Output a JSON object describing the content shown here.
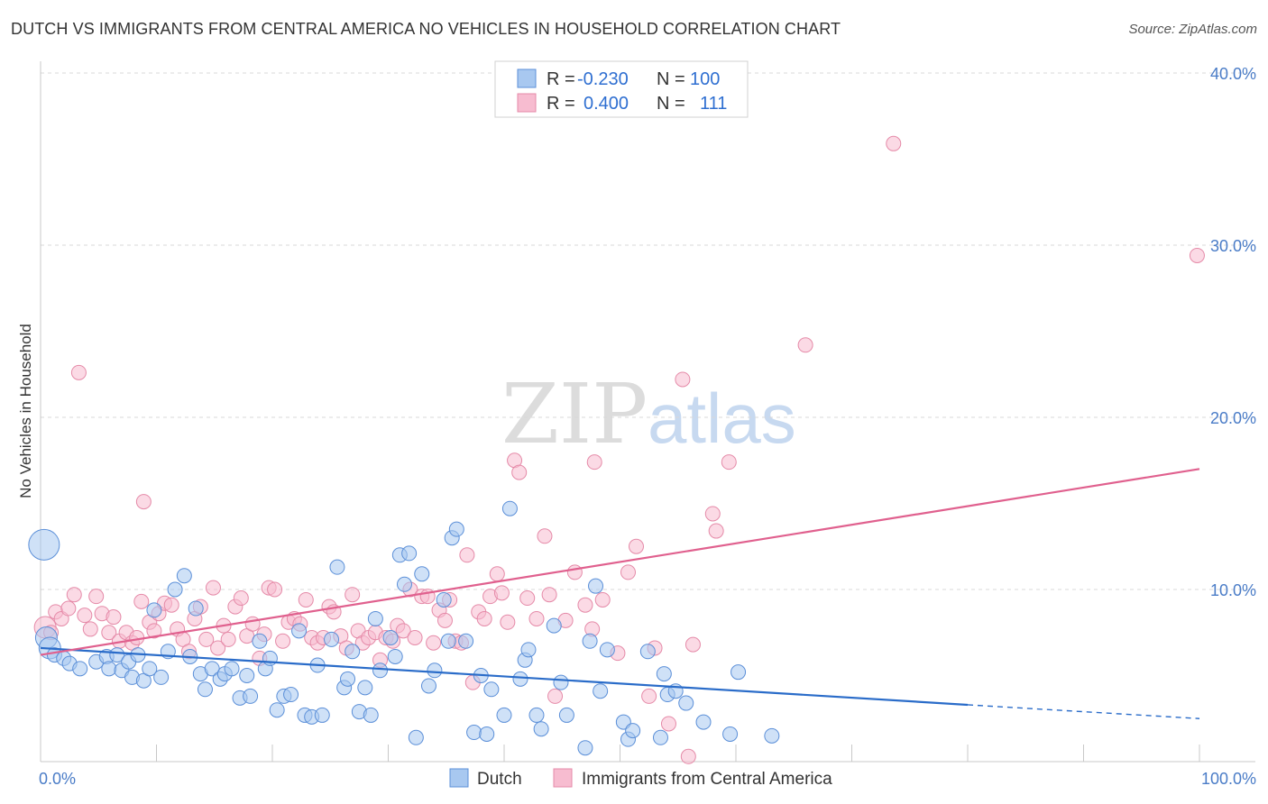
{
  "title": "DUTCH VS IMMIGRANTS FROM CENTRAL AMERICA NO VEHICLES IN HOUSEHOLD CORRELATION CHART",
  "source": "Source: ZipAtlas.com",
  "watermark": {
    "zip": "ZIP",
    "atlas": "atlas"
  },
  "colors": {
    "dutch_fill": "#a8c8f0",
    "dutch_stroke": "#5b8fd8",
    "dutch_line": "#2a6cc9",
    "imm_fill": "#f7bcd0",
    "imm_stroke": "#e58aa8",
    "imm_line": "#e0608e",
    "grid": "#d8d8d8",
    "tick_text": "#4a7cc7"
  },
  "legend": {
    "rows": [
      {
        "r_label": "R =",
        "r_value": "-0.230",
        "n_label": "N =",
        "n_value": "100"
      },
      {
        "r_label": "R =",
        "r_value": "0.400",
        "n_label": "N =",
        "n_value": "111"
      }
    ]
  },
  "bottom_legend": [
    "Dutch",
    "Immigrants from Central America"
  ],
  "chart_data": {
    "type": "scatter",
    "title": "DUTCH VS IMMIGRANTS FROM CENTRAL AMERICA NO VEHICLES IN HOUSEHOLD CORRELATION CHART",
    "xlabel": "",
    "ylabel": "No Vehicles in Household",
    "xlim": [
      0,
      100
    ],
    "ylim": [
      0,
      40
    ],
    "y_ticks": [
      10,
      20,
      30,
      40
    ],
    "y_tick_labels": [
      "10.0%",
      "20.0%",
      "30.0%",
      "40.0%"
    ],
    "x_tick_labels": [
      "0.0%",
      "100.0%"
    ],
    "grid": true,
    "series": [
      {
        "name": "Dutch",
        "trend": {
          "x0": 0,
          "y0": 6.6,
          "x1": 80,
          "y1": 3.3,
          "dash_to_x": 100,
          "dash_to_y": 2.5
        },
        "points": [
          [
            0.3,
            12.6,
            3
          ],
          [
            0.5,
            7.2,
            2
          ],
          [
            0.8,
            6.6,
            2
          ],
          [
            1.2,
            6.2,
            1
          ],
          [
            2.0,
            6.0,
            1
          ],
          [
            2.5,
            5.7,
            1
          ],
          [
            3.4,
            5.4,
            1
          ],
          [
            4.8,
            5.8,
            1
          ],
          [
            5.7,
            6.1,
            1
          ],
          [
            5.9,
            5.4,
            1
          ],
          [
            6.6,
            6.2,
            1
          ],
          [
            7.0,
            5.3,
            1
          ],
          [
            7.6,
            5.8,
            1
          ],
          [
            7.9,
            4.9,
            1
          ],
          [
            8.4,
            6.2,
            1
          ],
          [
            8.9,
            4.7,
            1
          ],
          [
            9.4,
            5.4,
            1
          ],
          [
            9.8,
            8.8,
            1
          ],
          [
            10.4,
            4.9,
            1
          ],
          [
            11.0,
            6.4,
            1
          ],
          [
            11.6,
            10.0,
            1
          ],
          [
            12.4,
            10.8,
            1
          ],
          [
            12.9,
            6.1,
            1
          ],
          [
            13.4,
            8.9,
            1
          ],
          [
            13.8,
            5.1,
            1
          ],
          [
            14.2,
            4.2,
            1
          ],
          [
            14.8,
            5.4,
            1
          ],
          [
            15.5,
            4.8,
            1
          ],
          [
            15.9,
            5.1,
            1
          ],
          [
            16.5,
            5.4,
            1
          ],
          [
            17.2,
            3.7,
            1
          ],
          [
            17.8,
            5.0,
            1
          ],
          [
            18.1,
            3.8,
            1
          ],
          [
            18.9,
            7.0,
            1
          ],
          [
            19.4,
            5.4,
            1
          ],
          [
            19.8,
            6.0,
            1
          ],
          [
            20.4,
            3.0,
            1
          ],
          [
            21.0,
            3.8,
            1
          ],
          [
            21.6,
            3.9,
            1
          ],
          [
            22.3,
            7.6,
            1
          ],
          [
            22.8,
            2.7,
            1
          ],
          [
            23.4,
            2.6,
            1
          ],
          [
            23.9,
            5.6,
            1
          ],
          [
            24.3,
            2.7,
            1
          ],
          [
            25.1,
            7.1,
            1
          ],
          [
            25.6,
            11.3,
            1
          ],
          [
            26.2,
            4.3,
            1
          ],
          [
            26.5,
            4.8,
            1
          ],
          [
            26.9,
            6.4,
            1
          ],
          [
            27.5,
            2.9,
            1
          ],
          [
            28.0,
            4.3,
            1
          ],
          [
            28.5,
            2.7,
            1
          ],
          [
            28.9,
            8.3,
            1
          ],
          [
            29.3,
            5.3,
            1
          ],
          [
            30.2,
            7.2,
            1
          ],
          [
            30.6,
            6.1,
            1
          ],
          [
            31.0,
            12.0,
            1
          ],
          [
            31.4,
            10.3,
            1
          ],
          [
            31.8,
            12.1,
            1
          ],
          [
            32.4,
            1.4,
            1
          ],
          [
            32.9,
            10.9,
            1
          ],
          [
            33.5,
            4.4,
            1
          ],
          [
            34.0,
            5.3,
            1
          ],
          [
            34.8,
            9.4,
            1
          ],
          [
            35.2,
            7.0,
            1
          ],
          [
            35.5,
            13.0,
            1
          ],
          [
            35.9,
            13.5,
            1
          ],
          [
            36.7,
            7.0,
            1
          ],
          [
            37.4,
            1.7,
            1
          ],
          [
            38.0,
            5.0,
            1
          ],
          [
            38.5,
            1.6,
            1
          ],
          [
            38.9,
            4.2,
            1
          ],
          [
            40.0,
            2.7,
            1
          ],
          [
            40.5,
            14.7,
            1
          ],
          [
            41.4,
            4.8,
            1
          ],
          [
            41.8,
            5.9,
            1
          ],
          [
            42.1,
            6.5,
            1
          ],
          [
            42.8,
            2.7,
            1
          ],
          [
            43.2,
            1.9,
            1
          ],
          [
            44.3,
            7.9,
            1
          ],
          [
            44.9,
            4.6,
            1
          ],
          [
            45.4,
            2.7,
            1
          ],
          [
            47.0,
            0.8,
            1
          ],
          [
            47.4,
            7.0,
            1
          ],
          [
            47.9,
            10.2,
            1
          ],
          [
            48.3,
            4.1,
            1
          ],
          [
            48.9,
            6.5,
            1
          ],
          [
            50.3,
            2.3,
            1
          ],
          [
            50.7,
            1.3,
            1
          ],
          [
            51.1,
            1.8,
            1
          ],
          [
            52.4,
            6.4,
            1
          ],
          [
            53.5,
            1.4,
            1
          ],
          [
            53.8,
            5.1,
            1
          ],
          [
            54.1,
            3.9,
            1
          ],
          [
            54.8,
            4.1,
            1
          ],
          [
            55.7,
            3.4,
            1
          ],
          [
            57.2,
            2.3,
            1
          ],
          [
            59.5,
            1.6,
            1
          ],
          [
            60.2,
            5.2,
            1
          ],
          [
            63.1,
            1.5,
            1
          ]
        ]
      },
      {
        "name": "Immigrants from Central America",
        "trend": {
          "x0": 0,
          "y0": 6.2,
          "x1": 100,
          "y1": 17.0
        },
        "points": [
          [
            0.4,
            7.8,
            2
          ],
          [
            0.9,
            7.5,
            1
          ],
          [
            1.3,
            8.7,
            1
          ],
          [
            1.8,
            8.3,
            1
          ],
          [
            2.4,
            8.9,
            1
          ],
          [
            2.9,
            9.7,
            1
          ],
          [
            3.3,
            22.6,
            1
          ],
          [
            3.8,
            8.5,
            1
          ],
          [
            4.3,
            7.7,
            1
          ],
          [
            4.8,
            9.6,
            1
          ],
          [
            5.3,
            8.6,
            1
          ],
          [
            5.9,
            7.5,
            1
          ],
          [
            6.3,
            8.4,
            1
          ],
          [
            6.8,
            7.0,
            1
          ],
          [
            7.4,
            7.5,
            1
          ],
          [
            7.9,
            6.9,
            1
          ],
          [
            8.3,
            7.2,
            1
          ],
          [
            8.7,
            9.3,
            1
          ],
          [
            8.9,
            15.1,
            1
          ],
          [
            9.4,
            8.1,
            1
          ],
          [
            9.8,
            7.6,
            1
          ],
          [
            10.2,
            8.6,
            1
          ],
          [
            10.7,
            9.2,
            1
          ],
          [
            11.3,
            9.1,
            1
          ],
          [
            11.8,
            7.7,
            1
          ],
          [
            12.3,
            7.1,
            1
          ],
          [
            12.8,
            6.4,
            1
          ],
          [
            13.3,
            8.3,
            1
          ],
          [
            13.8,
            9.0,
            1
          ],
          [
            14.3,
            7.1,
            1
          ],
          [
            14.9,
            10.1,
            1
          ],
          [
            15.3,
            6.6,
            1
          ],
          [
            15.8,
            7.9,
            1
          ],
          [
            16.2,
            7.1,
            1
          ],
          [
            16.8,
            9.0,
            1
          ],
          [
            17.3,
            9.5,
            1
          ],
          [
            17.8,
            7.3,
            1
          ],
          [
            18.3,
            8.0,
            1
          ],
          [
            18.9,
            6.0,
            1
          ],
          [
            19.3,
            7.4,
            1
          ],
          [
            19.7,
            10.1,
            1
          ],
          [
            20.2,
            10.0,
            1
          ],
          [
            20.9,
            7.0,
            1
          ],
          [
            21.4,
            8.1,
            1
          ],
          [
            21.9,
            8.3,
            1
          ],
          [
            22.4,
            8.0,
            1
          ],
          [
            22.9,
            9.4,
            1
          ],
          [
            23.4,
            7.2,
            1
          ],
          [
            23.9,
            6.9,
            1
          ],
          [
            24.4,
            7.2,
            1
          ],
          [
            24.9,
            9.0,
            1
          ],
          [
            25.3,
            8.7,
            1
          ],
          [
            25.9,
            7.3,
            1
          ],
          [
            26.4,
            6.6,
            1
          ],
          [
            26.9,
            9.7,
            1
          ],
          [
            27.4,
            7.6,
            1
          ],
          [
            27.8,
            6.9,
            1
          ],
          [
            28.3,
            7.2,
            1
          ],
          [
            28.9,
            7.5,
            1
          ],
          [
            29.3,
            5.9,
            1
          ],
          [
            29.8,
            7.2,
            1
          ],
          [
            30.4,
            7.0,
            1
          ],
          [
            30.8,
            7.9,
            1
          ],
          [
            31.3,
            7.6,
            1
          ],
          [
            31.9,
            10.0,
            1
          ],
          [
            32.3,
            7.2,
            1
          ],
          [
            32.9,
            9.6,
            1
          ],
          [
            33.4,
            9.6,
            1
          ],
          [
            33.9,
            6.9,
            1
          ],
          [
            34.4,
            8.8,
            1
          ],
          [
            34.9,
            8.2,
            1
          ],
          [
            35.3,
            9.4,
            1
          ],
          [
            35.8,
            7.0,
            1
          ],
          [
            36.3,
            6.9,
            1
          ],
          [
            36.8,
            12.0,
            1
          ],
          [
            37.3,
            4.6,
            1
          ],
          [
            37.8,
            8.7,
            1
          ],
          [
            38.3,
            8.3,
            1
          ],
          [
            38.8,
            9.6,
            1
          ],
          [
            39.4,
            10.9,
            1
          ],
          [
            39.8,
            9.8,
            1
          ],
          [
            40.3,
            8.1,
            1
          ],
          [
            40.9,
            17.5,
            1
          ],
          [
            41.3,
            16.8,
            1
          ],
          [
            42.0,
            9.5,
            1
          ],
          [
            42.8,
            8.3,
            1
          ],
          [
            43.5,
            13.1,
            1
          ],
          [
            43.9,
            9.7,
            1
          ],
          [
            44.4,
            3.8,
            1
          ],
          [
            45.3,
            8.2,
            1
          ],
          [
            46.1,
            11.0,
            1
          ],
          [
            47.0,
            9.1,
            1
          ],
          [
            47.6,
            7.7,
            1
          ],
          [
            47.8,
            17.4,
            1
          ],
          [
            48.5,
            9.4,
            1
          ],
          [
            49.8,
            6.3,
            1
          ],
          [
            50.7,
            11.0,
            1
          ],
          [
            51.4,
            12.5,
            1
          ],
          [
            52.5,
            3.8,
            1
          ],
          [
            53.0,
            6.6,
            1
          ],
          [
            54.2,
            2.2,
            1
          ],
          [
            55.4,
            22.2,
            1
          ],
          [
            55.9,
            0.3,
            1
          ],
          [
            56.3,
            6.8,
            1
          ],
          [
            58.0,
            14.4,
            1
          ],
          [
            58.3,
            13.4,
            1
          ],
          [
            59.4,
            17.4,
            1
          ],
          [
            66.0,
            24.2,
            1
          ],
          [
            73.6,
            35.9,
            1
          ],
          [
            99.8,
            29.4,
            1
          ]
        ]
      }
    ]
  }
}
